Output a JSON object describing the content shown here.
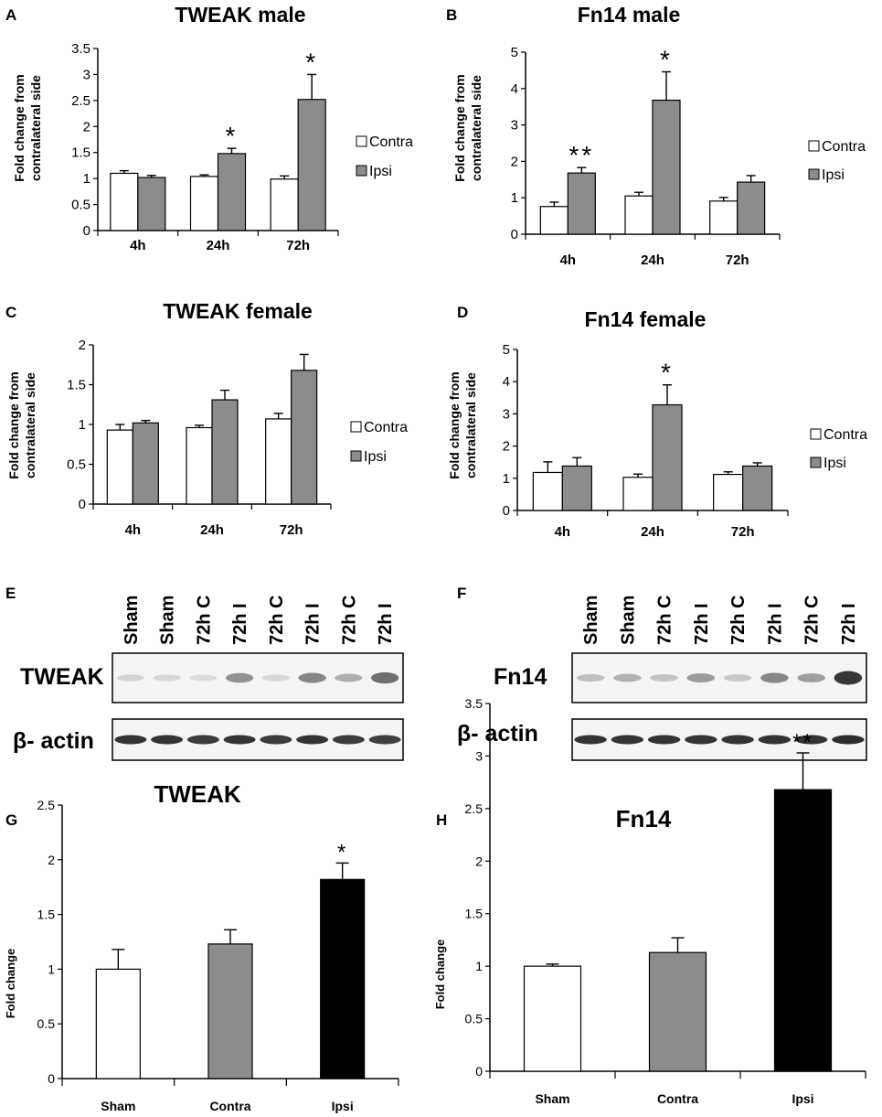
{
  "colors": {
    "contra": "#ffffff",
    "ipsi": "#8c8c8c",
    "black": "#000000",
    "blot_bg": "#f4f4f4"
  },
  "chart_data": [
    {
      "id": "A",
      "panel_label": "A",
      "type": "bar",
      "title": "TWEAK male",
      "ylabel_lines": [
        "Fold change from",
        "contralateral side"
      ],
      "categories": [
        "4h",
        "24h",
        "72h"
      ],
      "ylim": [
        0,
        3.5
      ],
      "yticks": [
        "0",
        "0.5",
        "1",
        "1.5",
        "2",
        "2.5",
        "3",
        "3.5"
      ],
      "legend": [
        "Contra",
        "Ipsi"
      ],
      "series": [
        {
          "name": "Contra",
          "values": [
            1.1,
            1.04,
            0.99
          ],
          "errors": [
            0.05,
            0.03,
            0.06
          ]
        },
        {
          "name": "Ipsi",
          "values": [
            1.02,
            1.48,
            2.52
          ],
          "errors": [
            0.04,
            0.1,
            0.48
          ]
        }
      ],
      "annotations": [
        "",
        "*",
        "*"
      ]
    },
    {
      "id": "B",
      "panel_label": "B",
      "type": "bar",
      "title": "Fn14 male",
      "ylabel_lines": [
        "Fold change from",
        "contralateral side"
      ],
      "categories": [
        "4h",
        "24h",
        "72h"
      ],
      "ylim": [
        0,
        5
      ],
      "yticks": [
        "0",
        "1",
        "2",
        "3",
        "4",
        "5"
      ],
      "legend": [
        "Contra",
        "Ipsi"
      ],
      "series": [
        {
          "name": "Contra",
          "values": [
            0.76,
            1.05,
            0.91
          ],
          "errors": [
            0.12,
            0.1,
            0.1
          ]
        },
        {
          "name": "Ipsi",
          "values": [
            1.68,
            3.68,
            1.43
          ],
          "errors": [
            0.15,
            0.78,
            0.18
          ]
        }
      ],
      "annotations": [
        "**",
        "*",
        ""
      ]
    },
    {
      "id": "C",
      "panel_label": "C",
      "type": "bar",
      "title": "TWEAK female",
      "ylabel_lines": [
        "Fold change from",
        "contralateral side"
      ],
      "categories": [
        "4h",
        "24h",
        "72h"
      ],
      "ylim": [
        0,
        2
      ],
      "yticks": [
        "0",
        "0.5",
        "1",
        "1.5",
        "2"
      ],
      "legend": [
        "Contra",
        "Ipsi"
      ],
      "series": [
        {
          "name": "Contra",
          "values": [
            0.93,
            0.96,
            1.07
          ],
          "errors": [
            0.07,
            0.03,
            0.07
          ]
        },
        {
          "name": "Ipsi",
          "values": [
            1.02,
            1.31,
            1.68
          ],
          "errors": [
            0.03,
            0.12,
            0.2
          ]
        }
      ],
      "annotations": [
        "",
        "",
        ""
      ]
    },
    {
      "id": "D",
      "panel_label": "D",
      "type": "bar",
      "title": "Fn14 female",
      "ylabel_lines": [
        "Fold change from",
        "contralateral side"
      ],
      "categories": [
        "4h",
        "24h",
        "72h"
      ],
      "ylim": [
        0,
        5
      ],
      "yticks": [
        "0",
        "1",
        "2",
        "3",
        "4",
        "5"
      ],
      "legend": [
        "Contra",
        "Ipsi"
      ],
      "series": [
        {
          "name": "Contra",
          "values": [
            1.18,
            1.03,
            1.12
          ],
          "errors": [
            0.33,
            0.1,
            0.08
          ]
        },
        {
          "name": "Ipsi",
          "values": [
            1.38,
            3.28,
            1.38
          ],
          "errors": [
            0.26,
            0.62,
            0.1
          ]
        }
      ],
      "annotations": [
        "",
        "*",
        ""
      ]
    },
    {
      "id": "G",
      "panel_label": "G",
      "type": "bar",
      "title": "TWEAK",
      "ylabel": "Fold change",
      "categories": [
        "Sham",
        "Contra",
        "Ipsi"
      ],
      "ylim": [
        0,
        2.5
      ],
      "yticks": [
        "0",
        "0.5",
        "1",
        "1.5",
        "2",
        "2.5"
      ],
      "values": [
        1.0,
        1.23,
        1.82
      ],
      "errors": [
        0.18,
        0.13,
        0.15
      ],
      "bar_colors": [
        "#ffffff",
        "#8c8c8c",
        "#000000"
      ],
      "annotations": [
        "",
        "",
        "*"
      ]
    },
    {
      "id": "H",
      "panel_label": "H",
      "type": "bar",
      "title": "Fn14",
      "ylabel": "Fold change",
      "categories": [
        "Sham",
        "Contra",
        "Ipsi"
      ],
      "ylim": [
        0,
        3.5
      ],
      "yticks": [
        "0",
        "0.5",
        "1",
        "1.5",
        "2",
        "2.5",
        "3",
        "3.5"
      ],
      "values": [
        1.0,
        1.13,
        2.68
      ],
      "errors": [
        0.02,
        0.14,
        0.35
      ],
      "bar_colors": [
        "#ffffff",
        "#8c8c8c",
        "#000000"
      ],
      "annotations": [
        "",
        "",
        "**"
      ]
    }
  ],
  "blots": [
    {
      "id": "E",
      "panel_label": "E",
      "protein_label": "TWEAK",
      "actin_label": "β- actin",
      "lanes": [
        "Sham",
        "Sham",
        "72h C",
        "72h I",
        "72h C",
        "72h I",
        "72h C",
        "72h I"
      ],
      "target_intensity": [
        0.12,
        0.1,
        0.08,
        0.45,
        0.1,
        0.5,
        0.3,
        0.62
      ],
      "actin_intensity": [
        0.85,
        0.85,
        0.82,
        0.85,
        0.82,
        0.85,
        0.82,
        0.8
      ]
    },
    {
      "id": "F",
      "panel_label": "F",
      "protein_label": "Fn14",
      "actin_label": "β- actin",
      "lanes": [
        "Sham",
        "Sham",
        "72h C",
        "72h I",
        "72h C",
        "72h I",
        "72h C",
        "72h I"
      ],
      "target_intensity": [
        0.22,
        0.28,
        0.2,
        0.4,
        0.18,
        0.5,
        0.38,
        0.9
      ],
      "actin_intensity": [
        0.85,
        0.85,
        0.85,
        0.85,
        0.85,
        0.85,
        0.85,
        0.88
      ]
    }
  ]
}
